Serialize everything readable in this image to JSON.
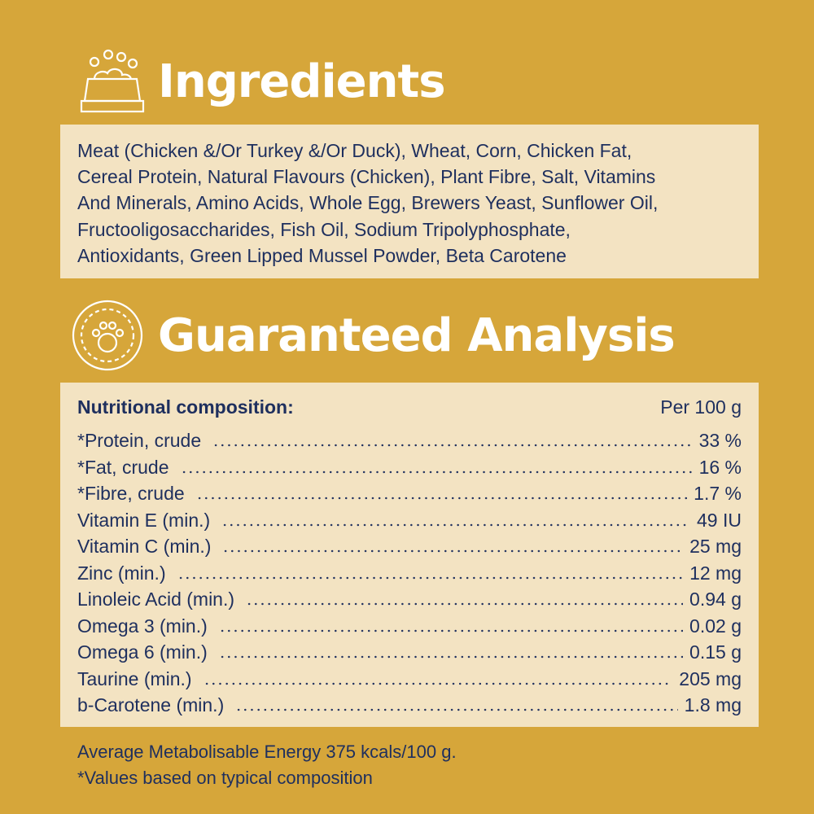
{
  "ingredients": {
    "title": "Ingredients",
    "icon": "food-bowl-icon",
    "lines": [
      "Meat (Chicken &/Or Turkey &/Or Duck), Wheat, Corn, Chicken Fat,",
      "Cereal Protein, Natural Flavours (Chicken), Plant Fibre, Salt, Vitamins",
      "And Minerals, Amino Acids, Whole Egg, Brewers Yeast, Sunflower Oil,",
      "Fructooligosaccharides, Fish Oil, Sodium Tripolyphosphate,",
      "Antioxidants, Green Lipped Mussel Powder, Beta Carotene"
    ]
  },
  "analysis": {
    "title": "Guaranteed Analysis",
    "icon": "paw-badge-icon",
    "header_label": "Nutritional composition:",
    "header_unit": "Per 100 g",
    "rows": [
      {
        "label": "*Protein, crude",
        "value": "33 %"
      },
      {
        "label": "*Fat, crude",
        "value": "16 %"
      },
      {
        "label": "*Fibre, crude",
        "value": "1.7 %"
      },
      {
        "label": "Vitamin E (min.)",
        "value": "49 IU"
      },
      {
        "label": "Vitamin C (min.)",
        "value": "25 mg"
      },
      {
        "label": "Zinc (min.)",
        "value": "12 mg"
      },
      {
        "label": "Linoleic Acid (min.)",
        "value": "0.94 g"
      },
      {
        "label": "Omega 3 (min.)",
        "value": "0.02 g"
      },
      {
        "label": "Omega 6 (min.)",
        "value": "0.15 g"
      },
      {
        "label": "Taurine (min.)",
        "value": "205 mg"
      },
      {
        "label": "b-Carotene (min.)",
        "value": "1.8 mg"
      }
    ]
  },
  "footer": {
    "energy": "Average Metabolisable Energy 375 kcals/100 g.",
    "note": "*Values based on typical composition"
  },
  "colors": {
    "background": "#D6A63A",
    "panel": "#F3E3C2",
    "text": "#1E2F5E",
    "heading": "#FFFFFF"
  }
}
